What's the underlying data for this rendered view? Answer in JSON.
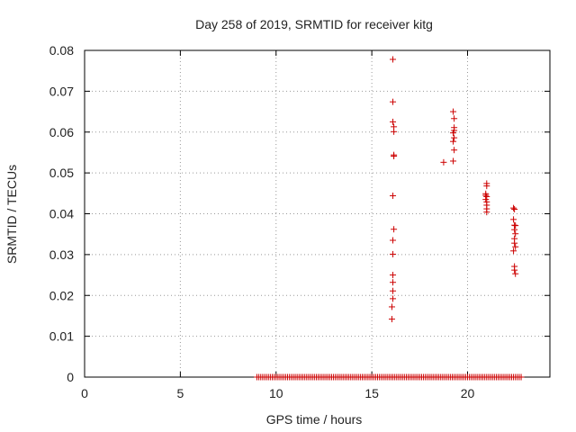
{
  "chart_data": {
    "type": "scatter",
    "title": "Day 258 of 2019, SRMTID for receiver kitg",
    "xlabel": "GPS time / hours",
    "ylabel": "SRMTID / TECUs",
    "xlim": [
      0,
      24.3
    ],
    "ylim": [
      0,
      0.08
    ],
    "x_ticks": [
      0,
      5,
      10,
      15,
      20
    ],
    "y_ticks": [
      0,
      0.01,
      0.02,
      0.03,
      0.04,
      0.05,
      0.06,
      0.07,
      0.08
    ],
    "x_tick_labels": [
      "0",
      "5",
      "10",
      "15",
      "20"
    ],
    "y_tick_labels": [
      "0",
      "0.01",
      "0.02",
      "0.03",
      "0.04",
      "0.05",
      "0.06",
      "0.07",
      "0.08"
    ],
    "grid": true,
    "legend": false,
    "marker": "plus",
    "color": "#cc0000",
    "series": [
      {
        "x": [
          16.1,
          16.1,
          16.1,
          16.15,
          16.15,
          16.15,
          16.15,
          16.1,
          16.15,
          16.1,
          16.1,
          16.1,
          16.1,
          16.1,
          16.1,
          16.05,
          16.05,
          18.75,
          19.25,
          19.3,
          19.3,
          19.3,
          19.25,
          19.3,
          19.25,
          19.3,
          19.25,
          21.0,
          21.0,
          20.95,
          21.0,
          20.95,
          21.0,
          21.0,
          21.0,
          21.0,
          20.95,
          22.4,
          22.45,
          22.4,
          22.45,
          22.5,
          22.45,
          22.5,
          22.45,
          22.45,
          22.5,
          22.4,
          22.45,
          22.45,
          22.5
        ],
        "y": [
          0.0778,
          0.0674,
          0.0625,
          0.0613,
          0.0601,
          0.0544,
          0.0541,
          0.0444,
          0.0362,
          0.0335,
          0.0301,
          0.025,
          0.0232,
          0.0211,
          0.0192,
          0.0172,
          0.0142,
          0.0526,
          0.065,
          0.0633,
          0.0611,
          0.0604,
          0.0598,
          0.0586,
          0.0577,
          0.0556,
          0.0529,
          0.0474,
          0.0468,
          0.0449,
          0.0442,
          0.0435,
          0.0429,
          0.0421,
          0.0412,
          0.0404,
          0.0445,
          0.0414,
          0.0411,
          0.0386,
          0.0372,
          0.0371,
          0.0361,
          0.0351,
          0.0339,
          0.0328,
          0.0319,
          0.0309,
          0.0271,
          0.0262,
          0.0253
        ]
      }
    ],
    "zero_band": {
      "x_start": 9.0,
      "x_end": 22.8,
      "step": 0.1,
      "y": 0
    }
  }
}
